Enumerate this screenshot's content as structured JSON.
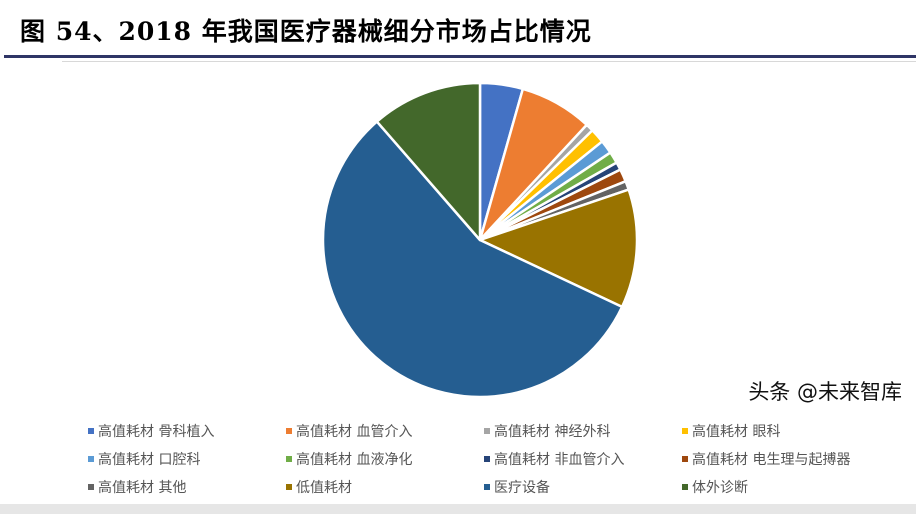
{
  "chart_data": {
    "type": "pie",
    "title": "图 54、2018 年我国医疗器械细分市场占比情况",
    "legend_position": "bottom",
    "slices": [
      {
        "label": "高值耗材 骨科植入",
        "value": 4.4,
        "color": "#4472c4"
      },
      {
        "label": "高值耗材 血管介入",
        "value": 7.5,
        "color": "#ed7d31"
      },
      {
        "label": "高值耗材 神经外科",
        "value": 0.8,
        "color": "#a5a5a5"
      },
      {
        "label": "高值耗材 眼科",
        "value": 1.5,
        "color": "#ffc000"
      },
      {
        "label": "高值耗材 口腔科",
        "value": 1.4,
        "color": "#5b9bd5"
      },
      {
        "label": "高值耗材 血液净化",
        "value": 1.2,
        "color": "#70ad47"
      },
      {
        "label": "高值耗材 非血管介入",
        "value": 0.8,
        "color": "#264478"
      },
      {
        "label": "高值耗材 电生理与起搏器",
        "value": 1.3,
        "color": "#9e480e"
      },
      {
        "label": "高值耗材 其他",
        "value": 0.9,
        "color": "#636363"
      },
      {
        "label": "低值耗材",
        "value": 12.2,
        "color": "#997300"
      },
      {
        "label": "医疗设备",
        "value": 56.6,
        "color": "#255e91"
      },
      {
        "label": "体外诊断",
        "value": 11.4,
        "color": "#43682b"
      }
    ]
  },
  "watermark": "头条 @未来智库"
}
